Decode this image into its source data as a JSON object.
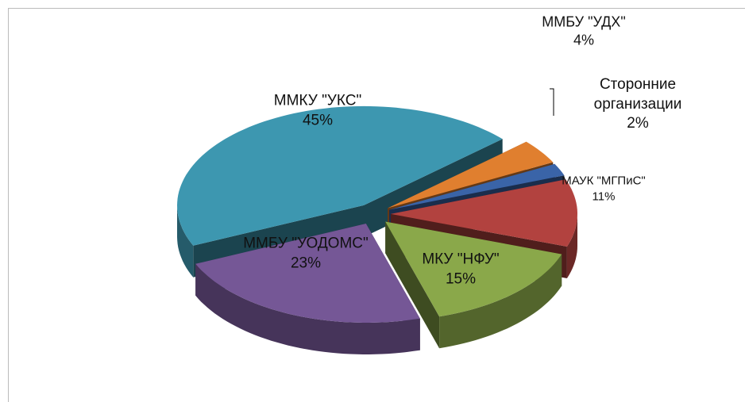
{
  "chart_data": {
    "type": "pie3d",
    "categories": [
      "ММБУ \"УДХ\"",
      "Сторонние организации",
      "МАУК \"МГПиС\"",
      "МКУ \"НФУ\"",
      "ММБУ \"УОДОМС\"",
      "ММКУ \"УКС\""
    ],
    "values": [
      4,
      2,
      11,
      15,
      23,
      45
    ],
    "value_labels": [
      "4%",
      "2%",
      "11%",
      "15%",
      "23%",
      "45%"
    ],
    "colors": [
      "#e07f2f",
      "#3a64a8",
      "#b2423f",
      "#8aa84a",
      "#755796",
      "#3d97b0"
    ]
  }
}
